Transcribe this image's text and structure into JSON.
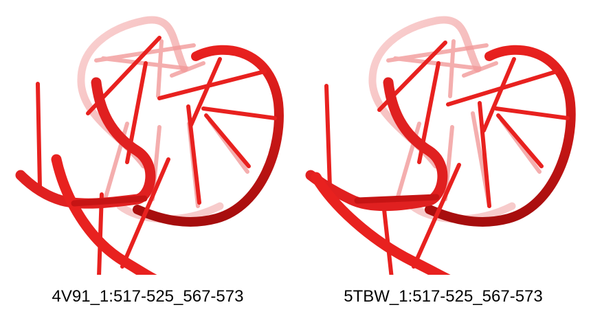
{
  "panels": [
    {
      "label": "4V91_1:517-525_567-573",
      "variant": "a"
    },
    {
      "label": "5TBW_1:517-525_567-573",
      "variant": "b"
    }
  ],
  "colors": {
    "rna_strand": "#e8211f",
    "rna_strand_dark": "#b30f0f",
    "rna_strand_faded": "#f29a9a",
    "background": "#ffffff"
  }
}
